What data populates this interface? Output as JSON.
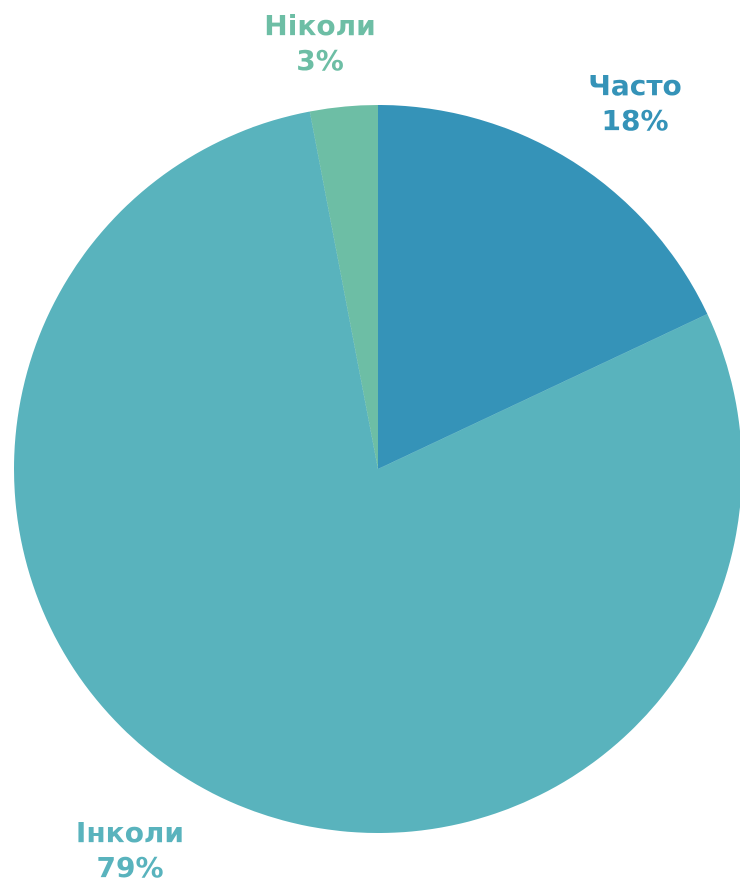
{
  "chart_data": {
    "type": "pie",
    "title": "",
    "slices": [
      {
        "label": "Часто",
        "value": 18,
        "value_label": "18%",
        "color": "#3593b8"
      },
      {
        "label": "Інколи",
        "value": 79,
        "value_label": "79%",
        "color": "#59b3bd"
      },
      {
        "label": "Ніколи",
        "value": 3,
        "value_label": "3%",
        "color": "#6dbea5"
      }
    ],
    "start_angle_deg": 0,
    "direction": "clockwise",
    "legend": "none",
    "labels": "outside"
  }
}
